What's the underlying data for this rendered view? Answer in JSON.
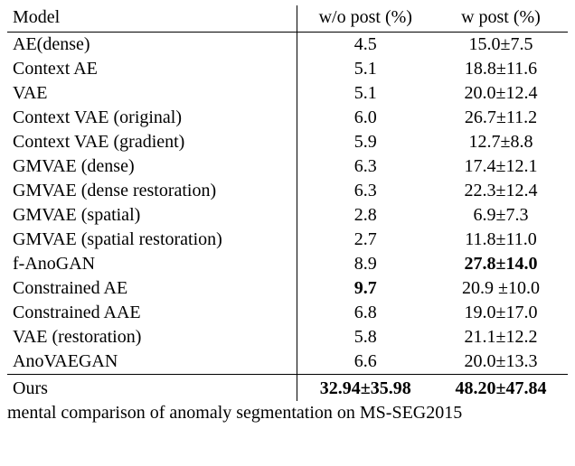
{
  "header": {
    "model": "Model",
    "wop": "w/o post (%)",
    "wp": "w post (%)"
  },
  "rows": [
    {
      "model": "AE(dense)",
      "wop": "4.5",
      "wp": "15.0±7.5",
      "wop_bold": false,
      "wp_bold": false
    },
    {
      "model": "Context AE",
      "wop": "5.1",
      "wp": "18.8±11.6",
      "wop_bold": false,
      "wp_bold": false
    },
    {
      "model": "VAE",
      "wop": "5.1",
      "wp": "20.0±12.4",
      "wop_bold": false,
      "wp_bold": false
    },
    {
      "model": "Context VAE (original)",
      "wop": "6.0",
      "wp": "26.7±11.2",
      "wop_bold": false,
      "wp_bold": false
    },
    {
      "model": "Context VAE (gradient)",
      "wop": "5.9",
      "wp": "12.7±8.8",
      "wop_bold": false,
      "wp_bold": false
    },
    {
      "model": "GMVAE (dense)",
      "wop": "6.3",
      "wp": "17.4±12.1",
      "wop_bold": false,
      "wp_bold": false
    },
    {
      "model": "GMVAE (dense restoration)",
      "wop": "6.3",
      "wp": "22.3±12.4",
      "wop_bold": false,
      "wp_bold": false
    },
    {
      "model": "GMVAE (spatial)",
      "wop": "2.8",
      "wp": "6.9±7.3",
      "wop_bold": false,
      "wp_bold": false
    },
    {
      "model": "GMVAE (spatial restoration)",
      "wop": "2.7",
      "wp": "11.8±11.0",
      "wop_bold": false,
      "wp_bold": false
    },
    {
      "model": "f-AnoGAN",
      "wop": "8.9",
      "wp": "27.8±14.0",
      "wop_bold": false,
      "wp_bold": true
    },
    {
      "model": "Constrained AE",
      "wop": "9.7",
      "wp": "20.9 ±10.0",
      "wop_bold": true,
      "wp_bold": false
    },
    {
      "model": "Constrained AAE",
      "wop": "6.8",
      "wp": "19.0±17.0",
      "wop_bold": false,
      "wp_bold": false
    },
    {
      "model": "VAE (restoration)",
      "wop": "5.8",
      "wp": "21.1±12.2",
      "wop_bold": false,
      "wp_bold": false
    },
    {
      "model": "AnoVAEGAN",
      "wop": "6.6",
      "wp": "20.0±13.3",
      "wop_bold": false,
      "wp_bold": false
    }
  ],
  "lastrow": {
    "model": "Ours",
    "wop": "32.94±35.98",
    "wp": "48.20±47.84",
    "wop_bold": true,
    "wp_bold": true
  },
  "caption": "mental comparison of anomaly segmentation on MS-SEG2015"
}
